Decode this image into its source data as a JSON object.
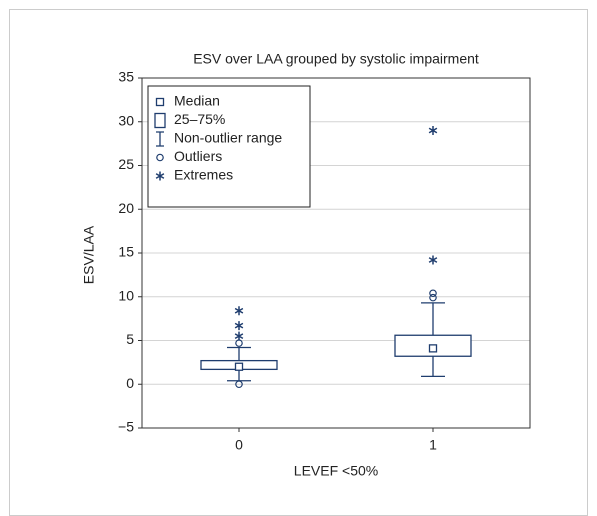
{
  "chart_data": {
    "type": "box",
    "title": "ESV over LAA grouped by systolic impairment",
    "x_label": "LEVEF <50%",
    "y_label": "ESV/LAA",
    "categories": [
      "0",
      "1"
    ],
    "color": "#1f3d6e",
    "boxes": [
      {
        "min": 0.4,
        "q1": 1.7,
        "median": 2.0,
        "q3": 2.7,
        "max": 4.2,
        "outliers": [
          0,
          4.7
        ],
        "extremes": [
          5.5,
          6.7,
          8.4
        ]
      },
      {
        "min": 0.9,
        "q1": 3.2,
        "median": 4.1,
        "q3": 5.6,
        "max": 9.3,
        "outliers": [
          9.9,
          10.4
        ],
        "extremes": [
          14.2,
          29.0
        ]
      }
    ],
    "ylim": [
      -5,
      35
    ],
    "yticks": [
      {
        "value": -5,
        "label": "−5"
      },
      0,
      5,
      10,
      15,
      20,
      25,
      30,
      35
    ],
    "grid": true,
    "legend": [
      "Median",
      "25–75%",
      "Non-outlier range",
      "Outliers",
      "Extremes"
    ],
    "legend_position": "upper-left"
  }
}
